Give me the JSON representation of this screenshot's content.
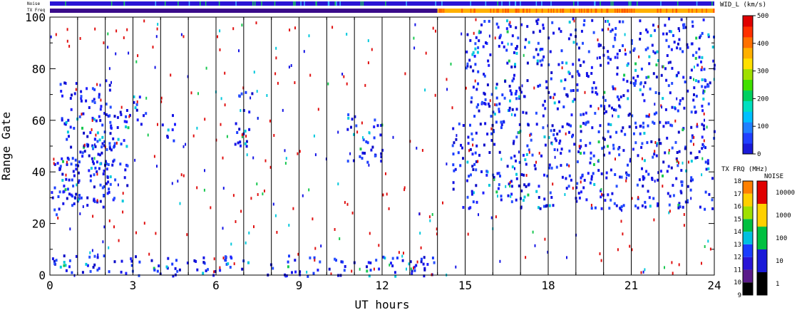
{
  "chart_data": {
    "type": "heatmap",
    "xlabel": "UT hours",
    "ylabel": "Range Gate",
    "xlim": [
      0,
      24
    ],
    "ylim": [
      0,
      100
    ],
    "x_ticks": [
      "0",
      "3",
      "6",
      "9",
      "12",
      "15",
      "18",
      "21",
      "24"
    ],
    "y_ticks": [
      "0",
      "20",
      "40",
      "60",
      "80",
      "100"
    ],
    "scan_boundaries_ut": [
      1,
      2,
      3,
      4,
      5,
      6,
      7,
      8,
      9,
      10,
      11,
      12,
      13,
      14,
      15,
      16,
      17,
      18,
      19,
      20,
      21,
      22,
      23
    ],
    "top_strips": {
      "noise_label": "Noise",
      "txfreq_label": "TX Freq",
      "txfreq_change_ut": 14
    },
    "colorbar": {
      "title": "WID_L (km/s)",
      "ticks": [
        "0",
        "100",
        "200",
        "300",
        "400",
        "500"
      ],
      "range": [
        0,
        500
      ]
    },
    "freq_bar": {
      "title": "TX FRQ (MHz)",
      "ticks": [
        "9",
        "10",
        "11",
        "12",
        "13",
        "14",
        "15",
        "16",
        "17",
        "18"
      ]
    },
    "noise_bar": {
      "title": "NOISE",
      "ticks": [
        "1",
        "10",
        "100",
        "1000",
        "10000"
      ]
    },
    "echo_regions": [
      {
        "ut": [
          0.0,
          1.1
        ],
        "gate": [
          23,
          46
        ]
      },
      {
        "ut": [
          0.3,
          2.2
        ],
        "gate": [
          26,
          76
        ]
      },
      {
        "ut": [
          1.3,
          2.8
        ],
        "gate": [
          28,
          66
        ]
      },
      {
        "ut": [
          2.8,
          3.5
        ],
        "gate": [
          58,
          70
        ]
      },
      {
        "ut": [
          4.0,
          4.5
        ],
        "gate": [
          52,
          64
        ]
      },
      {
        "ut": [
          6.6,
          7.3
        ],
        "gate": [
          50,
          72
        ]
      },
      {
        "ut": [
          10.7,
          12.0
        ],
        "gate": [
          44,
          64
        ]
      },
      {
        "ut": [
          14.5,
          24.0
        ],
        "gate": [
          26,
          60
        ]
      },
      {
        "ut": [
          15.0,
          24.0
        ],
        "gate": [
          62,
          100
        ]
      },
      {
        "ut": [
          0.0,
          14.0
        ],
        "gate": [
          0,
          8
        ]
      }
    ]
  }
}
